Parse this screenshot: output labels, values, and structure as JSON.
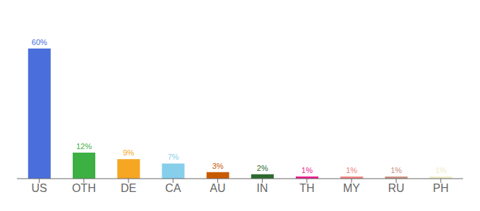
{
  "chart_data": {
    "type": "bar",
    "categories": [
      "US",
      "OTH",
      "DE",
      "CA",
      "AU",
      "IN",
      "TH",
      "MY",
      "RU",
      "PH"
    ],
    "values": [
      60,
      12,
      9,
      7,
      3,
      2,
      1,
      1,
      1,
      1
    ],
    "value_labels": [
      "60%",
      "12%",
      "9%",
      "7%",
      "3%",
      "2%",
      "1%",
      "1%",
      "1%",
      "1%"
    ],
    "colors": [
      "#4a6edb",
      "#3cb043",
      "#f5a623",
      "#87ceeb",
      "#c85a00",
      "#2d6a2d",
      "#e91e8c",
      "#f08080",
      "#c89080",
      "#f0ecc8"
    ],
    "ylim": [
      0,
      72
    ],
    "data_labels": true,
    "tick_labels": "x"
  }
}
